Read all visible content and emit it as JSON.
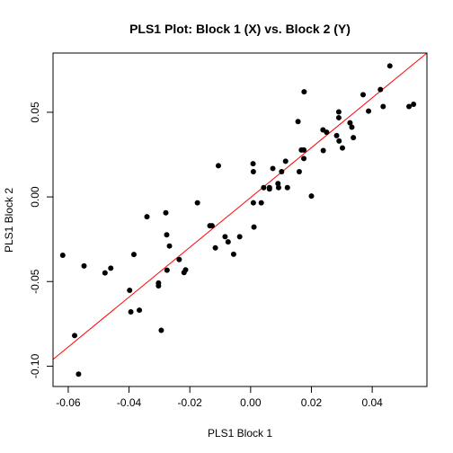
{
  "chart_data": {
    "type": "scatter",
    "title": "PLS1 Plot: Block 1 (X) vs. Block 2 (Y)",
    "xlabel": "PLS1 Block 1",
    "ylabel": "PLS1 Block 2",
    "xlim": [
      -0.065,
      0.058
    ],
    "ylim": [
      -0.112,
      0.085
    ],
    "x_ticks": [
      -0.06,
      -0.04,
      -0.02,
      0.0,
      0.02,
      0.04
    ],
    "x_tick_labels": [
      "-0.06",
      "-0.04",
      "-0.02",
      "0.00",
      "0.02",
      "0.04"
    ],
    "y_ticks": [
      -0.1,
      -0.05,
      0.0,
      0.05
    ],
    "y_tick_labels": [
      "-0.10",
      "-0.05",
      "0.00",
      "0.05"
    ],
    "grid": false,
    "point_color": "#000000",
    "fit_line": {
      "color": "#ff0000",
      "x": [
        -0.065,
        0.058
      ],
      "y": [
        -0.096,
        0.085
      ]
    },
    "points": [
      {
        "x": -0.0618,
        "y": -0.0345
      },
      {
        "x": -0.0579,
        "y": -0.0819
      },
      {
        "x": -0.0566,
        "y": -0.1047
      },
      {
        "x": -0.0548,
        "y": -0.0408
      },
      {
        "x": -0.0479,
        "y": -0.0449
      },
      {
        "x": -0.046,
        "y": -0.0421
      },
      {
        "x": -0.0398,
        "y": -0.0552
      },
      {
        "x": -0.0394,
        "y": -0.0679
      },
      {
        "x": -0.0384,
        "y": -0.034
      },
      {
        "x": -0.0366,
        "y": -0.0669
      },
      {
        "x": -0.0341,
        "y": -0.0117
      },
      {
        "x": -0.0303,
        "y": -0.0509
      },
      {
        "x": -0.0303,
        "y": -0.0525
      },
      {
        "x": -0.0294,
        "y": -0.0788
      },
      {
        "x": -0.0279,
        "y": -0.0094
      },
      {
        "x": -0.0276,
        "y": -0.0224
      },
      {
        "x": -0.0275,
        "y": -0.0433
      },
      {
        "x": -0.0267,
        "y": -0.029
      },
      {
        "x": -0.0235,
        "y": -0.037
      },
      {
        "x": -0.0219,
        "y": -0.0447
      },
      {
        "x": -0.0214,
        "y": -0.0431
      },
      {
        "x": -0.0175,
        "y": -0.0035
      },
      {
        "x": -0.0134,
        "y": -0.017
      },
      {
        "x": -0.0127,
        "y": -0.017
      },
      {
        "x": -0.0116,
        "y": -0.0301
      },
      {
        "x": -0.0106,
        "y": 0.0184
      },
      {
        "x": -0.0084,
        "y": -0.0235
      },
      {
        "x": -0.0074,
        "y": -0.0266
      },
      {
        "x": -0.0056,
        "y": -0.0339
      },
      {
        "x": -0.0036,
        "y": -0.0235
      },
      {
        "x": 0.0008,
        "y": 0.0196
      },
      {
        "x": 0.0009,
        "y": 0.0149
      },
      {
        "x": 0.0009,
        "y": -0.0035
      },
      {
        "x": 0.0011,
        "y": -0.0178
      },
      {
        "x": 0.0035,
        "y": -0.0035
      },
      {
        "x": 0.0043,
        "y": 0.0055
      },
      {
        "x": 0.0062,
        "y": 0.0055
      },
      {
        "x": 0.0062,
        "y": 0.0047
      },
      {
        "x": 0.0073,
        "y": 0.0168
      },
      {
        "x": 0.009,
        "y": 0.0079
      },
      {
        "x": 0.0092,
        "y": 0.0055
      },
      {
        "x": 0.0102,
        "y": 0.0149
      },
      {
        "x": 0.0115,
        "y": 0.0211
      },
      {
        "x": 0.0121,
        "y": 0.0055
      },
      {
        "x": 0.0156,
        "y": 0.0445
      },
      {
        "x": 0.016,
        "y": 0.0149
      },
      {
        "x": 0.0167,
        "y": 0.0277
      },
      {
        "x": 0.0175,
        "y": 0.0277
      },
      {
        "x": 0.0175,
        "y": 0.0227
      },
      {
        "x": 0.0176,
        "y": 0.0621
      },
      {
        "x": 0.02,
        "y": 0.0005
      },
      {
        "x": 0.0238,
        "y": 0.0396
      },
      {
        "x": 0.0239,
        "y": 0.0274
      },
      {
        "x": 0.025,
        "y": 0.0382
      },
      {
        "x": 0.0283,
        "y": 0.0362
      },
      {
        "x": 0.029,
        "y": 0.0502
      },
      {
        "x": 0.029,
        "y": 0.0468
      },
      {
        "x": 0.0291,
        "y": 0.033
      },
      {
        "x": 0.0302,
        "y": 0.0289
      },
      {
        "x": 0.0327,
        "y": 0.0438
      },
      {
        "x": 0.0333,
        "y": 0.0412
      },
      {
        "x": 0.0338,
        "y": 0.035
      },
      {
        "x": 0.037,
        "y": 0.0604
      },
      {
        "x": 0.0388,
        "y": 0.0507
      },
      {
        "x": 0.0427,
        "y": 0.0634
      },
      {
        "x": 0.0436,
        "y": 0.0534
      },
      {
        "x": 0.0458,
        "y": 0.0774
      },
      {
        "x": 0.0521,
        "y": 0.0534
      },
      {
        "x": 0.0536,
        "y": 0.0547
      }
    ]
  }
}
